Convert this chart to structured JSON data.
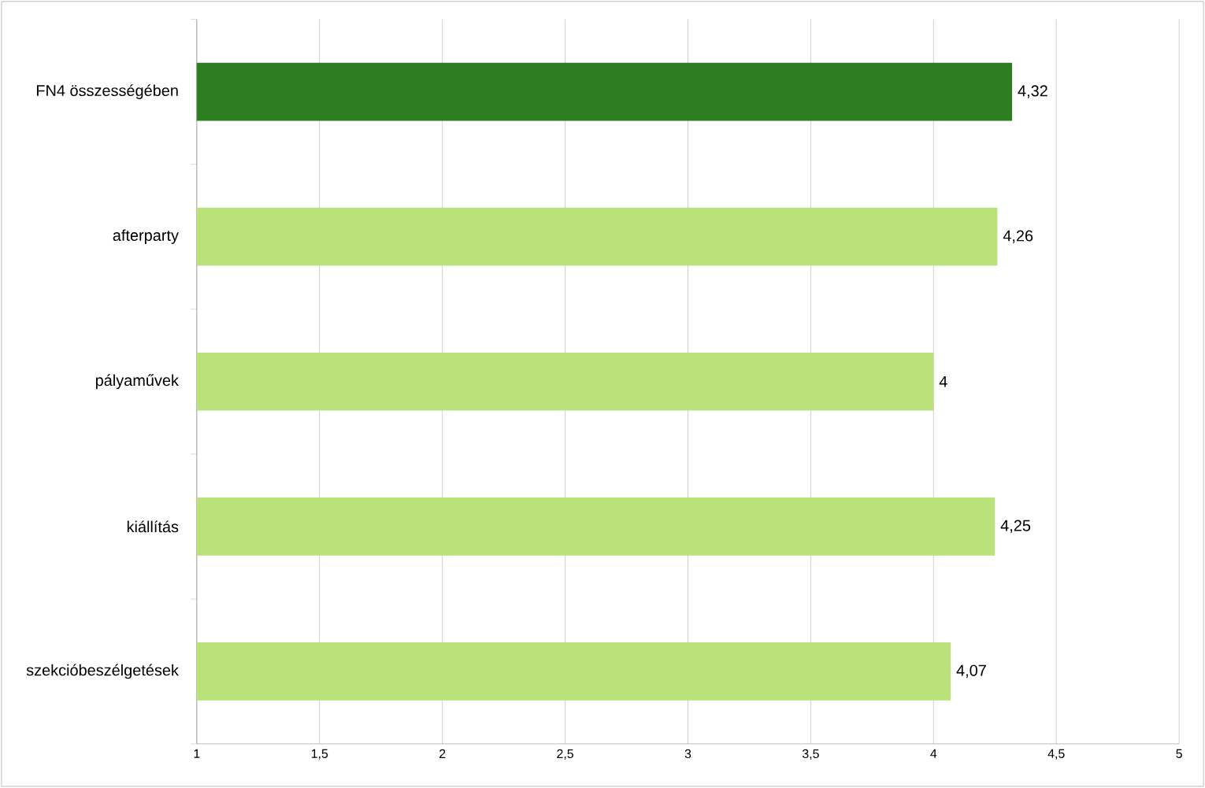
{
  "chart_data": {
    "type": "bar",
    "orientation": "horizontal",
    "categories": [
      "FN4 összességében",
      "afterparty",
      "pályaművek",
      "kiállítás",
      "szekcióbeszélgetések"
    ],
    "values": [
      4.32,
      4.26,
      4,
      4.25,
      4.07
    ],
    "colors": [
      "#2e7d22",
      "#b9e27a",
      "#b9e27a",
      "#b9e27a",
      "#b9e27a"
    ],
    "value_labels": [
      "4,32",
      "4,26",
      "4",
      "4,25",
      "4,07"
    ],
    "xlim": [
      1,
      5
    ],
    "xticks": [
      1,
      {
        "value": 1.5,
        "label": "1,5"
      },
      2,
      {
        "value": 2.5,
        "label": "2,5"
      },
      3,
      {
        "value": 3.5,
        "label": "3,5"
      },
      4,
      {
        "value": 4.5,
        "label": "4,5"
      },
      5
    ],
    "grid": "x"
  }
}
